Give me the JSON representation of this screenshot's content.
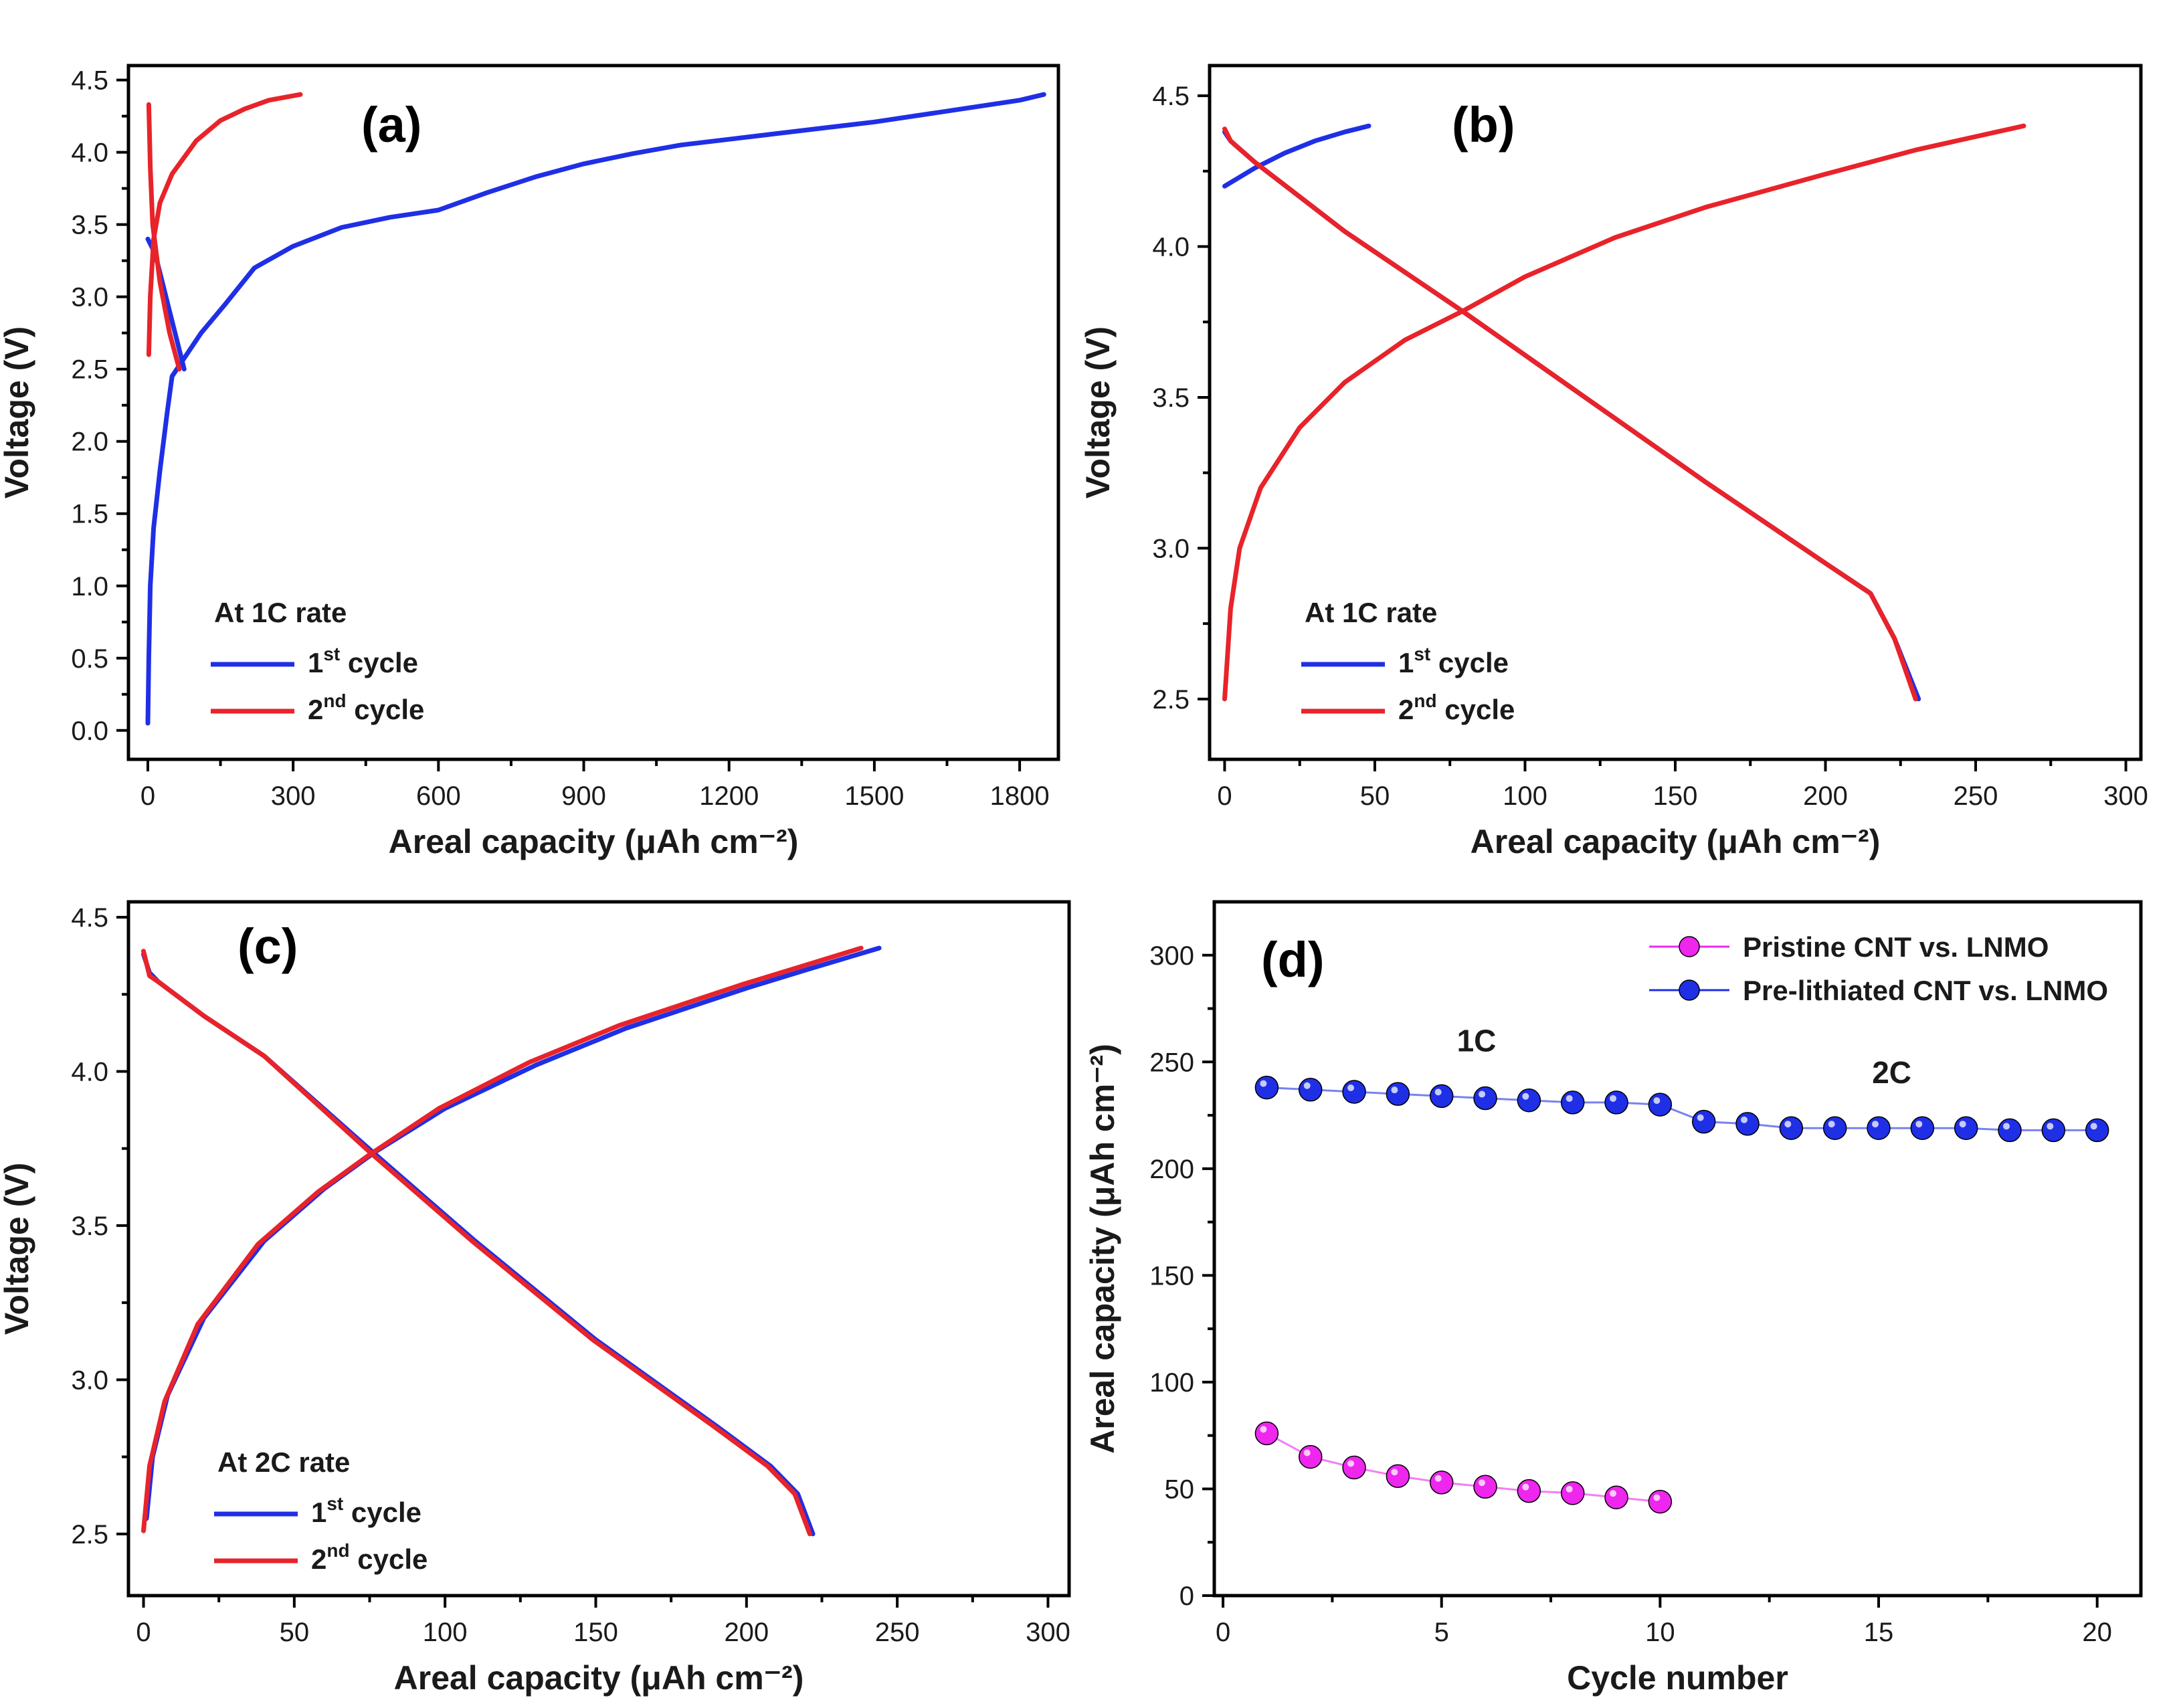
{
  "colors": {
    "blue": "#1f2fe6",
    "red": "#e8232a",
    "magenta": "#ee26ee",
    "axis": "#000000",
    "background": "#ffffff"
  },
  "chart_data": [
    {
      "id": "a",
      "type": "line",
      "panel_label": "(a)",
      "xlabel": "Areal capacity (μAh cm⁻²)",
      "ylabel": "Voltage (V)",
      "xlim": [
        -40,
        1880
      ],
      "ylim": [
        -0.2,
        4.6
      ],
      "xticks": [
        0,
        300,
        600,
        900,
        1200,
        1500,
        1800
      ],
      "yticks": [
        0.0,
        0.5,
        1.0,
        1.5,
        2.0,
        2.5,
        3.0,
        3.5,
        4.0,
        4.5
      ],
      "ytick_format": 1,
      "legend_title": "At 1C rate",
      "legend_title_pos": "lower-left",
      "series": [
        {
          "name": "1st cycle",
          "name_base": "1",
          "name_sup": "st",
          "name_tail": " cycle",
          "color": "blue",
          "curves": [
            [
              [
                0,
                0.05
              ],
              [
                2,
                0.5
              ],
              [
                5,
                1.0
              ],
              [
                12,
                1.4
              ],
              [
                25,
                1.8
              ],
              [
                40,
                2.2
              ],
              [
                50,
                2.45
              ],
              [
                70,
                2.55
              ],
              [
                110,
                2.75
              ],
              [
                160,
                2.95
              ],
              [
                220,
                3.2
              ],
              [
                300,
                3.35
              ],
              [
                400,
                3.48
              ],
              [
                500,
                3.55
              ],
              [
                600,
                3.6
              ],
              [
                700,
                3.72
              ],
              [
                800,
                3.83
              ],
              [
                900,
                3.92
              ],
              [
                1000,
                3.99
              ],
              [
                1100,
                4.05
              ],
              [
                1200,
                4.09
              ],
              [
                1300,
                4.13
              ],
              [
                1400,
                4.17
              ],
              [
                1500,
                4.21
              ],
              [
                1600,
                4.26
              ],
              [
                1700,
                4.31
              ],
              [
                1800,
                4.36
              ],
              [
                1850,
                4.4
              ]
            ],
            [
              [
                0,
                3.4
              ],
              [
                15,
                3.3
              ],
              [
                30,
                3.1
              ],
              [
                45,
                2.9
              ],
              [
                60,
                2.7
              ],
              [
                75,
                2.5
              ]
            ]
          ]
        },
        {
          "name": "2nd cycle",
          "name_base": "2",
          "name_sup": "nd",
          "name_tail": " cycle",
          "color": "red",
          "curves": [
            [
              [
                2,
                2.6
              ],
              [
                5,
                3.0
              ],
              [
                12,
                3.4
              ],
              [
                25,
                3.65
              ],
              [
                50,
                3.85
              ],
              [
                100,
                4.08
              ],
              [
                150,
                4.22
              ],
              [
                200,
                4.3
              ],
              [
                250,
                4.36
              ],
              [
                315,
                4.4
              ]
            ],
            [
              [
                2,
                4.33
              ],
              [
                5,
                3.9
              ],
              [
                10,
                3.5
              ],
              [
                25,
                3.1
              ],
              [
                45,
                2.75
              ],
              [
                65,
                2.5
              ]
            ]
          ]
        }
      ]
    },
    {
      "id": "b",
      "type": "line",
      "panel_label": "(b)",
      "xlabel": "Areal capacity (μAh cm⁻²)",
      "ylabel": "Voltage (V)",
      "xlim": [
        -5,
        305
      ],
      "ylim": [
        2.3,
        4.6
      ],
      "xticks": [
        0,
        50,
        100,
        150,
        200,
        250,
        300
      ],
      "yticks": [
        2.5,
        3.0,
        3.5,
        4.0,
        4.5
      ],
      "ytick_format": 1,
      "legend_title": "At 1C rate",
      "legend_title_pos": "lower-left",
      "series": [
        {
          "name": "1st cycle",
          "name_base": "1",
          "name_sup": "st",
          "name_tail": " cycle",
          "color": "blue",
          "curves": [
            [
              [
                0,
                4.2
              ],
              [
                10,
                4.26
              ],
              [
                20,
                4.31
              ],
              [
                30,
                4.35
              ],
              [
                40,
                4.38
              ],
              [
                48,
                4.4
              ]
            ],
            [
              [
                0,
                4.38
              ],
              [
                2,
                4.35
              ],
              [
                10,
                4.28
              ],
              [
                40,
                4.05
              ],
              [
                80,
                3.78
              ],
              [
                120,
                3.5
              ],
              [
                160,
                3.22
              ],
              [
                200,
                2.95
              ],
              [
                215,
                2.85
              ],
              [
                223,
                2.7
              ],
              [
                231,
                2.5
              ]
            ]
          ]
        },
        {
          "name": "2nd cycle",
          "name_base": "2",
          "name_sup": "nd",
          "name_tail": " cycle",
          "color": "red",
          "curves": [
            [
              [
                0,
                2.5
              ],
              [
                2,
                2.8
              ],
              [
                5,
                3.0
              ],
              [
                12,
                3.2
              ],
              [
                25,
                3.4
              ],
              [
                40,
                3.55
              ],
              [
                60,
                3.69
              ],
              [
                80,
                3.79
              ],
              [
                100,
                3.9
              ],
              [
                130,
                4.03
              ],
              [
                160,
                4.13
              ],
              [
                200,
                4.24
              ],
              [
                230,
                4.32
              ],
              [
                266,
                4.4
              ]
            ],
            [
              [
                0,
                4.39
              ],
              [
                2,
                4.35
              ],
              [
                10,
                4.28
              ],
              [
                40,
                4.05
              ],
              [
                80,
                3.78
              ],
              [
                120,
                3.5
              ],
              [
                160,
                3.22
              ],
              [
                200,
                2.95
              ],
              [
                215,
                2.85
              ],
              [
                223,
                2.7
              ],
              [
                230,
                2.5
              ]
            ]
          ]
        }
      ]
    },
    {
      "id": "c",
      "type": "line",
      "panel_label": "(c)",
      "xlabel": "Areal capacity (μAh cm⁻²)",
      "ylabel": "Voltage (V)",
      "xlim": [
        -5,
        307
      ],
      "ylim": [
        2.3,
        4.55
      ],
      "xticks": [
        0,
        50,
        100,
        150,
        200,
        250,
        300
      ],
      "yticks": [
        2.5,
        3.0,
        3.5,
        4.0,
        4.5
      ],
      "ytick_format": 1,
      "legend_title": "At 2C rate",
      "legend_title_pos": "lower-left",
      "series": [
        {
          "name": "1st cycle",
          "name_base": "1",
          "name_sup": "st",
          "name_tail": " cycle",
          "color": "blue",
          "curves": [
            [
              [
                1,
                2.55
              ],
              [
                3,
                2.75
              ],
              [
                8,
                2.95
              ],
              [
                20,
                3.2
              ],
              [
                40,
                3.45
              ],
              [
                60,
                3.62
              ],
              [
                77,
                3.74
              ],
              [
                100,
                3.88
              ],
              [
                130,
                4.02
              ],
              [
                160,
                4.14
              ],
              [
                200,
                4.27
              ],
              [
                220,
                4.33
              ],
              [
                244,
                4.4
              ]
            ],
            [
              [
                0,
                4.38
              ],
              [
                2,
                4.32
              ],
              [
                5,
                4.29
              ],
              [
                20,
                4.18
              ],
              [
                40,
                4.05
              ],
              [
                77,
                3.73
              ],
              [
                110,
                3.45
              ],
              [
                150,
                3.13
              ],
              [
                190,
                2.85
              ],
              [
                208,
                2.72
              ],
              [
                217,
                2.63
              ],
              [
                222,
                2.5
              ]
            ]
          ]
        },
        {
          "name": "2nd cycle",
          "name_base": "2",
          "name_sup": "nd",
          "name_tail": " cycle",
          "color": "red",
          "curves": [
            [
              [
                0,
                2.51
              ],
              [
                2,
                2.72
              ],
              [
                7,
                2.93
              ],
              [
                18,
                3.18
              ],
              [
                38,
                3.44
              ],
              [
                58,
                3.61
              ],
              [
                75,
                3.73
              ],
              [
                98,
                3.88
              ],
              [
                128,
                4.03
              ],
              [
                158,
                4.15
              ],
              [
                198,
                4.28
              ],
              [
                218,
                4.34
              ],
              [
                238,
                4.4
              ]
            ],
            [
              [
                0,
                4.39
              ],
              [
                2,
                4.31
              ],
              [
                5,
                4.29
              ],
              [
                20,
                4.18
              ],
              [
                40,
                4.05
              ],
              [
                76,
                3.73
              ],
              [
                109,
                3.45
              ],
              [
                149,
                3.13
              ],
              [
                189,
                2.85
              ],
              [
                207,
                2.72
              ],
              [
                216,
                2.63
              ],
              [
                221,
                2.5
              ]
            ]
          ]
        }
      ]
    },
    {
      "id": "d",
      "type": "scatter",
      "panel_label": "(d)",
      "xlabel": "Cycle number",
      "ylabel": "Areal capacity (μAh cm⁻²)",
      "xlim": [
        -0.2,
        21
      ],
      "ylim": [
        0,
        325
      ],
      "xticks": [
        0,
        5,
        10,
        15,
        20
      ],
      "yticks": [
        0,
        50,
        100,
        150,
        200,
        250,
        300
      ],
      "ytick_format": 0,
      "annotations": [
        "1C",
        "2C"
      ],
      "series": [
        {
          "name": "Pristine CNT vs. LNMO",
          "color": "magenta",
          "x": [
            1,
            2,
            3,
            4,
            5,
            6,
            7,
            8,
            9,
            10
          ],
          "y": [
            76,
            65,
            60,
            56,
            53,
            51,
            49,
            48,
            46,
            44
          ]
        },
        {
          "name": "Pre-lithiated CNT vs. LNMO",
          "color": "blue",
          "x": [
            1,
            2,
            3,
            4,
            5,
            6,
            7,
            8,
            9,
            10,
            11,
            12,
            13,
            14,
            15,
            16,
            17,
            18,
            19,
            20
          ],
          "y": [
            238,
            237,
            236,
            235,
            234,
            233,
            232,
            231,
            231,
            230,
            222,
            221,
            219,
            219,
            219,
            219,
            219,
            218,
            218,
            218
          ]
        }
      ]
    }
  ]
}
